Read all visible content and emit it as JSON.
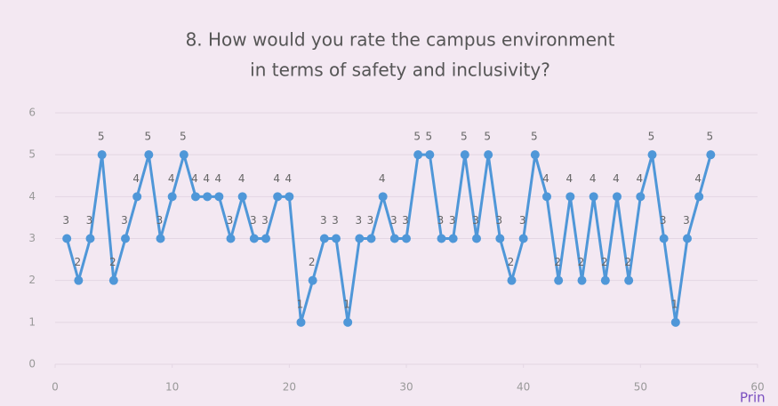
{
  "chart_data": {
    "type": "line",
    "title": [
      "8. How would you rate the campus environment",
      "in terms of safety and inclusivity?"
    ],
    "x": [
      1,
      2,
      3,
      4,
      5,
      6,
      7,
      8,
      9,
      10,
      11,
      12,
      13,
      14,
      15,
      16,
      17,
      18,
      19,
      20,
      21,
      22,
      23,
      24,
      25,
      26,
      27,
      28,
      29,
      30,
      31,
      32,
      33,
      34,
      35,
      36,
      37,
      38,
      39,
      40,
      41,
      42,
      43,
      44,
      45,
      46,
      47,
      48,
      49,
      50,
      51,
      52,
      53,
      54,
      55,
      56
    ],
    "values": [
      3,
      2,
      3,
      5,
      2,
      3,
      4,
      5,
      3,
      4,
      5,
      4,
      4,
      4,
      3,
      4,
      3,
      3,
      4,
      4,
      1,
      2,
      3,
      3,
      1,
      3,
      3,
      4,
      3,
      3,
      5,
      5,
      3,
      3,
      5,
      3,
      5,
      3,
      2,
      3,
      5,
      4,
      2,
      4,
      2,
      4,
      2,
      4,
      2,
      4,
      5,
      3,
      1,
      3,
      4,
      5
    ],
    "color": "#4f97d8",
    "xlim": [
      0,
      60
    ],
    "xticks": [
      0,
      10,
      20,
      30,
      40,
      50,
      60
    ],
    "ylim": [
      0,
      6
    ],
    "yticks": [
      0,
      1,
      2,
      3,
      4,
      5,
      6
    ],
    "grid": true,
    "annotation": "Prin"
  }
}
